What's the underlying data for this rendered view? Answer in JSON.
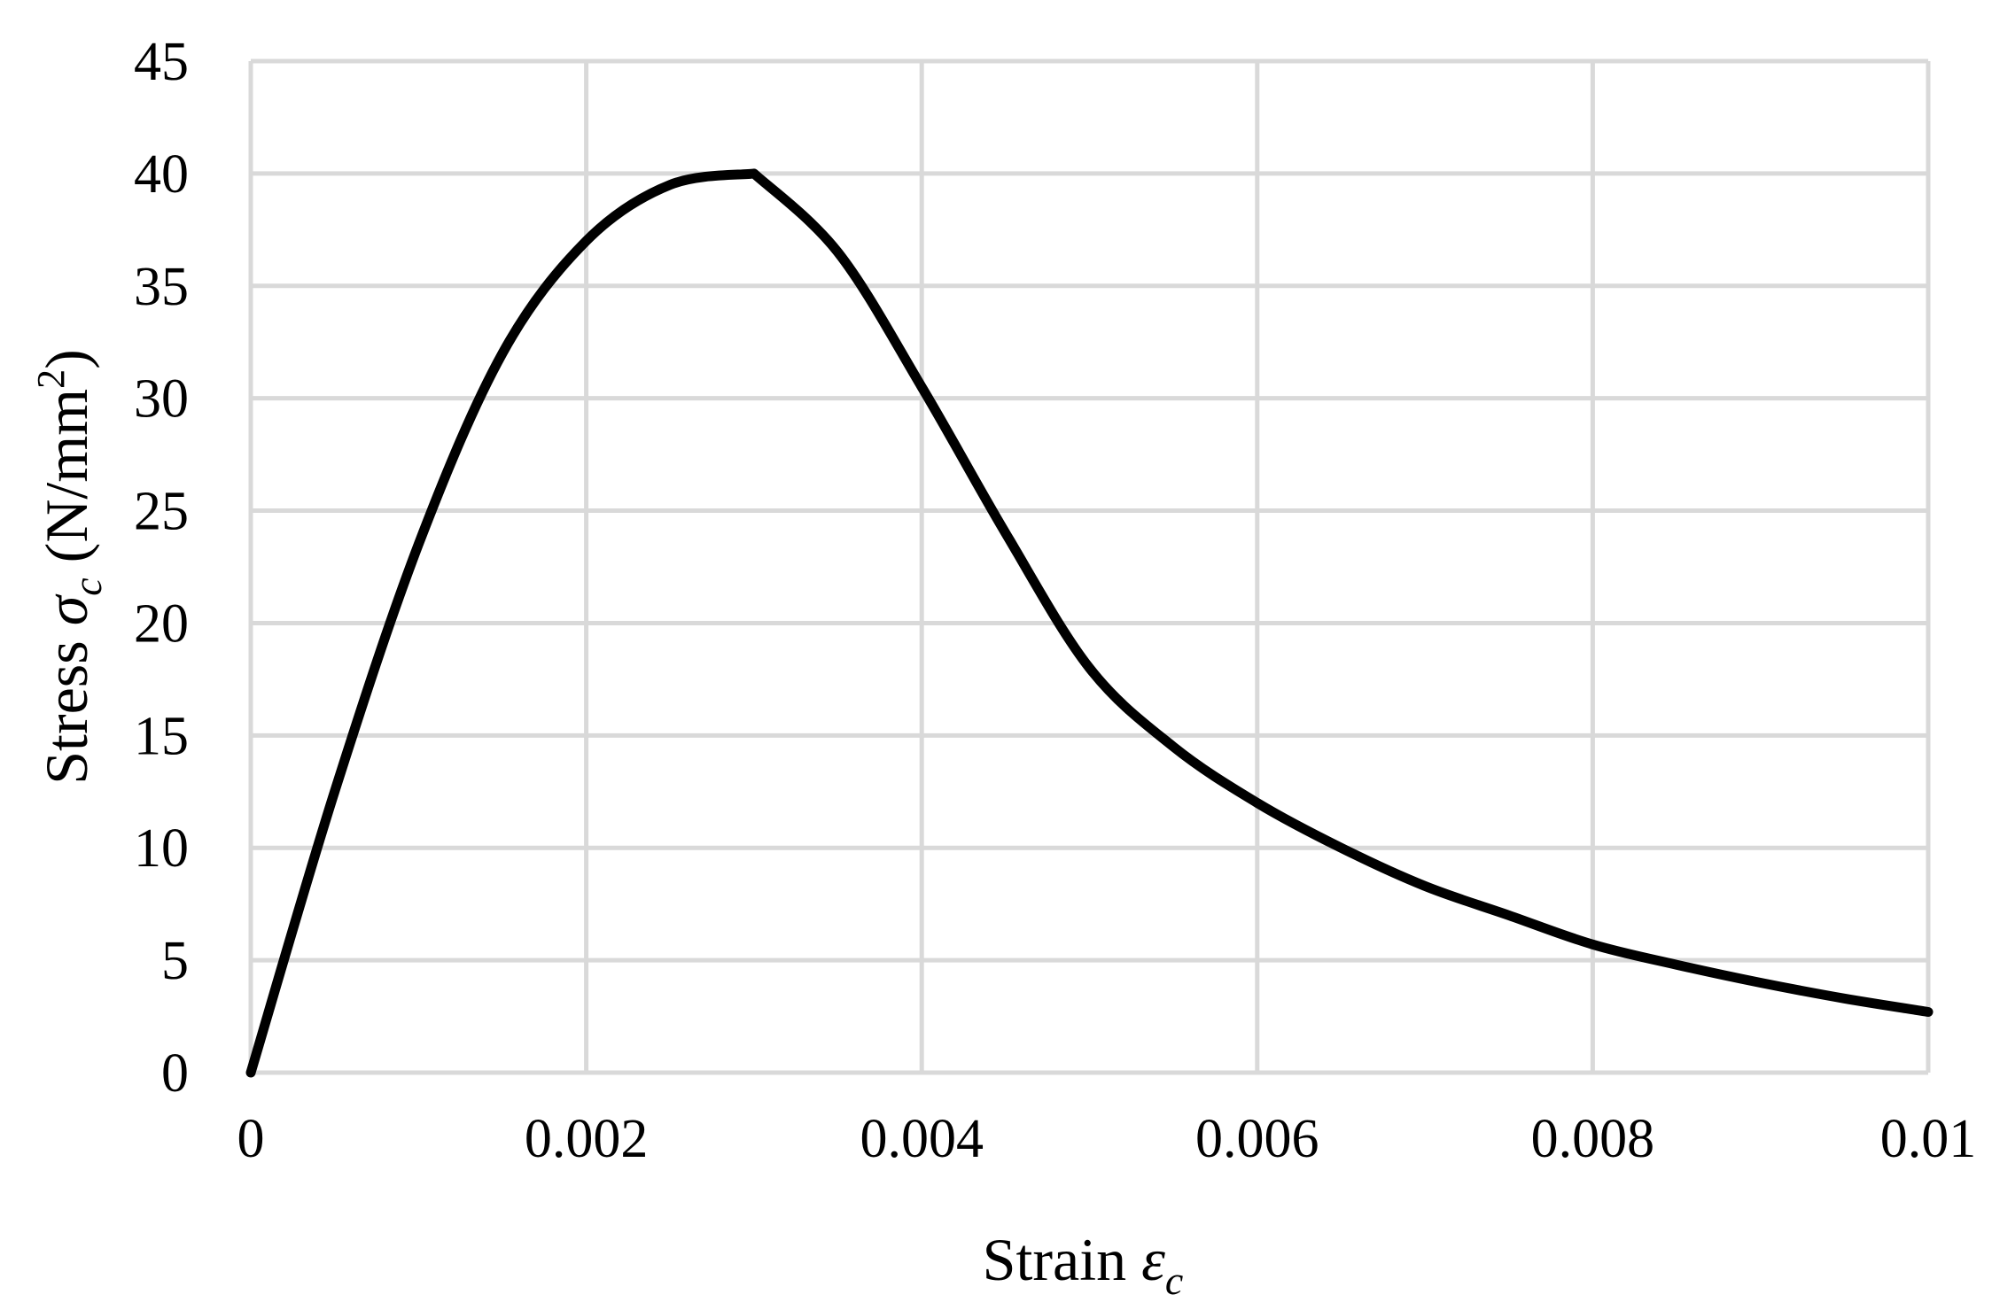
{
  "chart_data": {
    "type": "line",
    "title": "",
    "xlabel": {
      "text": "Strain ",
      "symbol": "ε",
      "subscript": "c"
    },
    "ylabel": {
      "text": "Stress ",
      "symbol": "σ",
      "subscript": "c",
      "unit_open": " (N/mm",
      "unit_sup": "2",
      "unit_close": ")"
    },
    "xlim": [
      0,
      0.01
    ],
    "ylim": [
      0,
      45
    ],
    "x_ticks": [
      0,
      0.002,
      0.004,
      0.006,
      0.008,
      0.01
    ],
    "x_tick_labels": [
      "0",
      "0.002",
      "0.004",
      "0.006",
      "0.008",
      "0.01"
    ],
    "y_ticks": [
      0,
      5,
      10,
      15,
      20,
      25,
      30,
      35,
      40,
      45
    ],
    "y_tick_labels": [
      "0",
      "5",
      "10",
      "15",
      "20",
      "25",
      "30",
      "35",
      "40",
      "45"
    ],
    "grid": true,
    "legend": "none",
    "series": [
      {
        "color": "#000000",
        "x": [
          0,
          0.0005,
          0.001,
          0.0015,
          0.002,
          0.0025,
          0.003,
          0.0035,
          0.004,
          0.0045,
          0.005,
          0.0055,
          0.006,
          0.0065,
          0.007,
          0.0075,
          0.008,
          0.0085,
          0.009,
          0.0095,
          0.01
        ],
        "y": [
          0,
          12.5,
          23.5,
          32.0,
          37.0,
          39.5,
          40.0,
          36.5,
          30.5,
          24.0,
          18.0,
          14.5,
          12.0,
          10.0,
          8.3,
          7.0,
          5.7,
          4.8,
          4.0,
          3.3,
          2.7
        ]
      }
    ],
    "colors": {
      "grid": "#d9d9d9",
      "line": "#000000"
    }
  }
}
